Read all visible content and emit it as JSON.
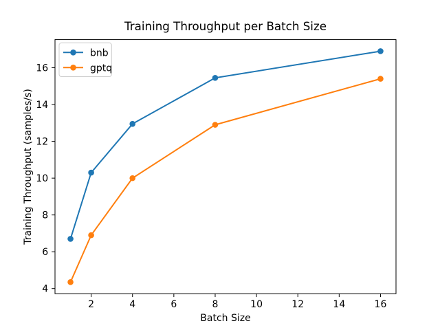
{
  "window": {
    "background": "#ffffff"
  },
  "chart_data": {
    "type": "line",
    "title": "Training Throughput per Batch Size",
    "xlabel": "Batch Size",
    "ylabel": "Training Throughput (samples/s)",
    "x": [
      1,
      2,
      4,
      8,
      16
    ],
    "series": [
      {
        "name": "bnb",
        "color": "#1f77b4",
        "marker": "circle",
        "values": [
          6.7,
          10.3,
          12.95,
          15.45,
          16.9
        ]
      },
      {
        "name": "gptq",
        "color": "#ff7f0e",
        "marker": "circle",
        "values": [
          4.35,
          6.9,
          10.0,
          12.9,
          15.4
        ]
      }
    ],
    "xlim": [
      0.25,
      16.75
    ],
    "ylim": [
      3.72,
      17.53
    ],
    "xticks": [
      2,
      4,
      6,
      8,
      10,
      12,
      14,
      16
    ],
    "yticks": [
      4,
      6,
      8,
      10,
      12,
      14,
      16
    ],
    "xtick_labels": [
      "2",
      "4",
      "6",
      "8",
      "10",
      "12",
      "14",
      "16"
    ],
    "ytick_labels": [
      "4",
      "6",
      "8",
      "10",
      "12",
      "14",
      "16"
    ],
    "grid": false,
    "legend_position": "upper-left",
    "axes_color": "#000000",
    "text_color": "#000000",
    "legend_border_color": "#cccccc",
    "legend_background": "#ffffff"
  }
}
